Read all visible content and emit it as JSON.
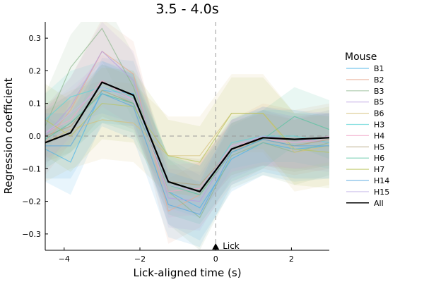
{
  "chart_data": {
    "type": "line",
    "title": "3.5 - 4.0s",
    "xlabel": "Lick-aligned time (s)",
    "ylabel": "Regression coefficient",
    "xlim": [
      -4.5,
      3.0
    ],
    "ylim": [
      -0.35,
      0.35
    ],
    "xticks": [
      -4,
      -2,
      0,
      2
    ],
    "xtick_labels": [
      "−4",
      "−2",
      "0",
      "2"
    ],
    "yticks": [
      -0.3,
      -0.2,
      -0.1,
      0.0,
      0.1,
      0.2,
      0.3
    ],
    "ytick_labels": [
      "−0.3",
      "−0.2",
      "−0.1",
      "0.0",
      "0.1",
      "0.2",
      "0.3"
    ],
    "grid": false,
    "legend_title": "Mouse",
    "legend_placement": "right",
    "annotation": {
      "text": "Lick",
      "x": 0.0,
      "marker": "triangle-up"
    },
    "reference_lines": {
      "vertical_x": 0.0,
      "horizontal_y": 0.0
    },
    "x": [
      -4.5,
      -3.83,
      -3.0,
      -2.17,
      -1.25,
      -0.42,
      0.42,
      1.25,
      2.08,
      3.0
    ],
    "series": [
      {
        "name": "B1",
        "color": "#4cb5e8",
        "values": [
          -0.04,
          -0.08,
          0.14,
          0.13,
          -0.17,
          -0.22,
          -0.07,
          -0.02,
          -0.04,
          -0.03
        ],
        "band": 0.1
      },
      {
        "name": "B2",
        "color": "#e8a98f",
        "values": [
          -0.02,
          0.08,
          0.26,
          0.19,
          -0.23,
          -0.18,
          -0.05,
          0.0,
          -0.02,
          0.0
        ],
        "band": 0.1
      },
      {
        "name": "B3",
        "color": "#8fb88f",
        "values": [
          0.03,
          0.21,
          0.33,
          0.15,
          -0.17,
          -0.25,
          -0.06,
          -0.02,
          -0.05,
          -0.02
        ],
        "band": 0.1
      },
      {
        "name": "B5",
        "color": "#b89de0",
        "values": [
          0.0,
          0.09,
          0.26,
          0.17,
          -0.19,
          -0.2,
          -0.04,
          0.0,
          -0.01,
          -0.02
        ],
        "band": 0.09
      },
      {
        "name": "B6",
        "color": "#d6c07a",
        "values": [
          -0.02,
          0.02,
          0.05,
          0.04,
          -0.06,
          -0.06,
          0.07,
          0.07,
          -0.05,
          -0.03
        ],
        "band": 0.12
      },
      {
        "name": "H3",
        "color": "#5fd4d6",
        "values": [
          0.05,
          0.12,
          0.15,
          0.12,
          -0.14,
          -0.17,
          -0.02,
          0.0,
          0.0,
          -0.02
        ],
        "band": 0.08
      },
      {
        "name": "H4",
        "color": "#f2a5c8",
        "values": [
          0.01,
          0.05,
          0.17,
          0.11,
          -0.17,
          -0.16,
          -0.03,
          -0.01,
          -0.02,
          -0.01
        ],
        "band": 0.08
      },
      {
        "name": "H5",
        "color": "#b0a27a",
        "values": [
          0.0,
          0.03,
          0.14,
          0.1,
          -0.14,
          -0.15,
          -0.04,
          -0.01,
          -0.03,
          -0.01
        ],
        "band": 0.08
      },
      {
        "name": "H6",
        "color": "#57c3a0",
        "values": [
          -0.01,
          0.04,
          0.13,
          0.1,
          -0.15,
          -0.18,
          -0.05,
          -0.01,
          0.06,
          0.02
        ],
        "band": 0.09
      },
      {
        "name": "H7",
        "color": "#b9c45e",
        "values": [
          0.05,
          0.0,
          0.1,
          0.09,
          -0.06,
          -0.08,
          0.07,
          0.07,
          -0.04,
          -0.05
        ],
        "band": 0.11
      },
      {
        "name": "H14",
        "color": "#58a8e0",
        "values": [
          -0.03,
          -0.03,
          0.13,
          0.09,
          -0.21,
          -0.24,
          -0.05,
          -0.01,
          -0.03,
          -0.03
        ],
        "band": 0.1
      },
      {
        "name": "H15",
        "color": "#c5b8e8",
        "values": [
          0.01,
          0.07,
          0.15,
          0.11,
          -0.15,
          -0.17,
          -0.03,
          0.0,
          -0.02,
          0.0
        ],
        "band": 0.08
      },
      {
        "name": "All",
        "color": "#000000",
        "values": [
          -0.02,
          0.01,
          0.165,
          0.125,
          -0.14,
          -0.17,
          -0.04,
          -0.005,
          -0.01,
          -0.005
        ],
        "band": 0
      }
    ]
  }
}
